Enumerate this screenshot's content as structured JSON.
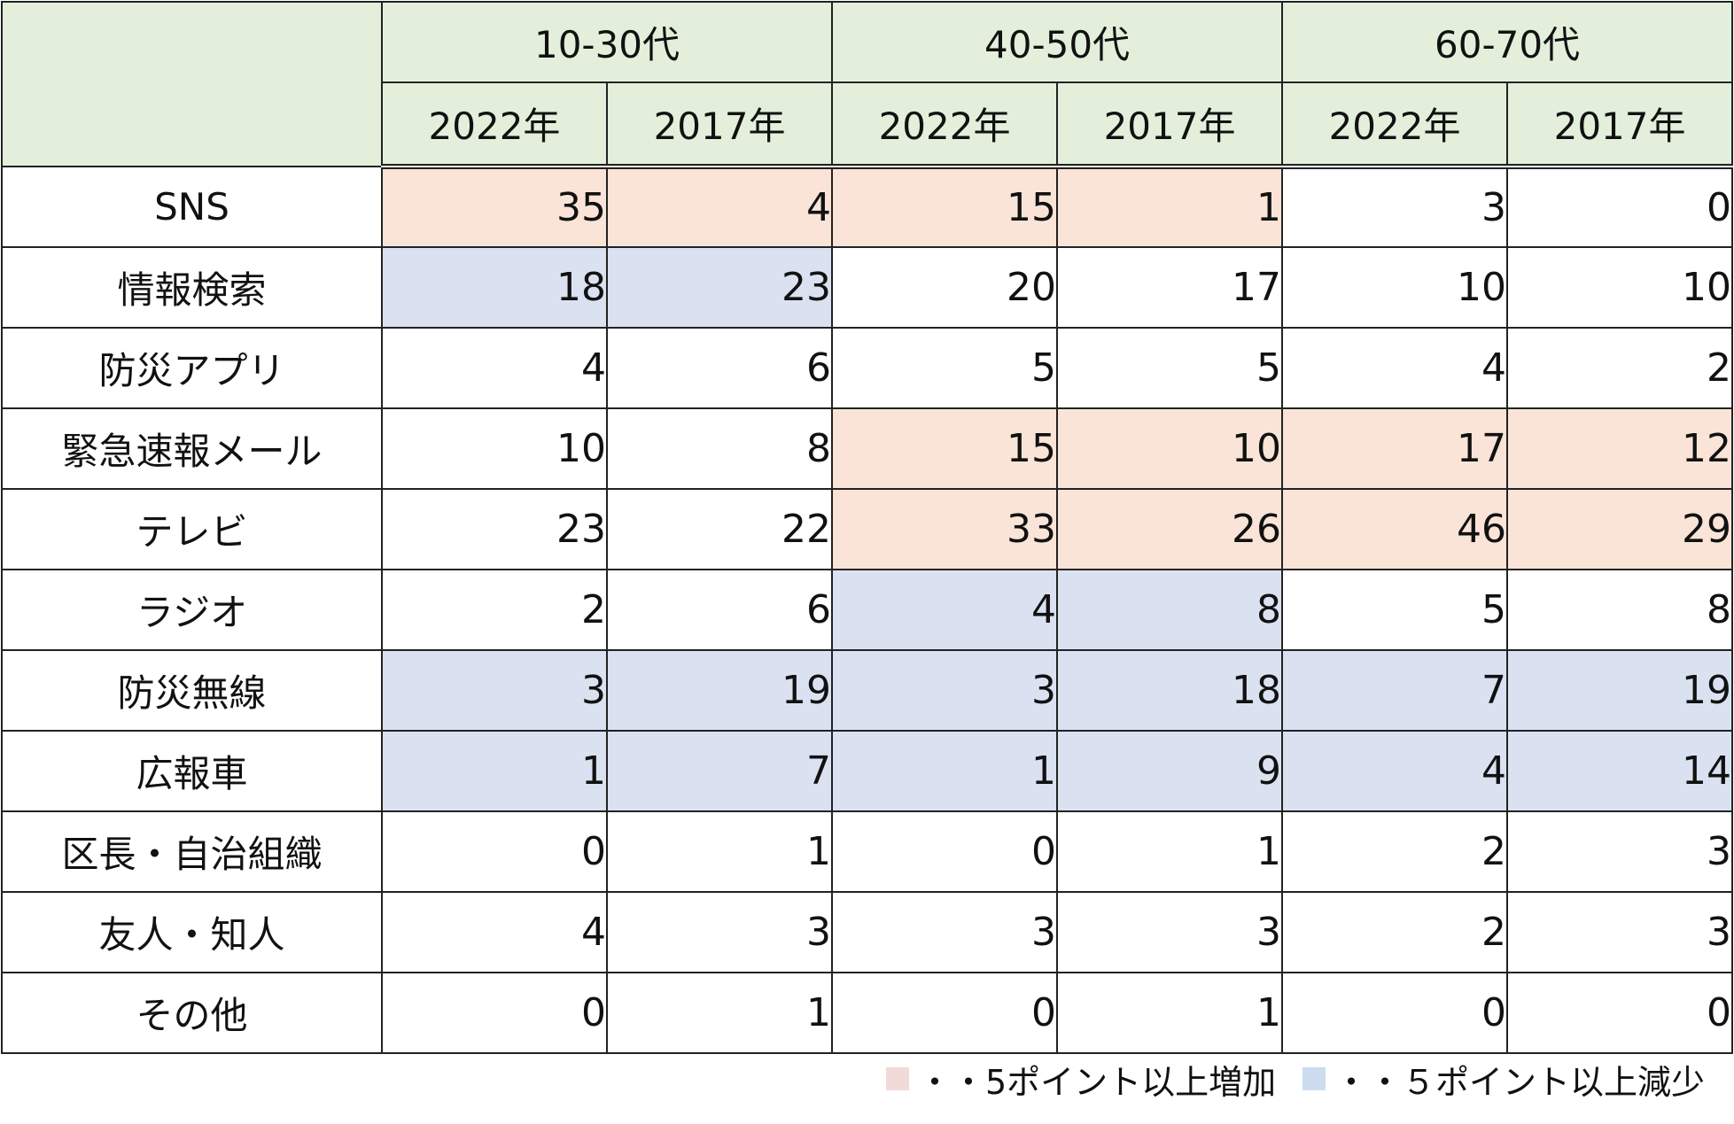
{
  "table": {
    "groups": [
      "10-30代",
      "40-50代",
      "60-70代"
    ],
    "years": [
      "2022年",
      "2017年",
      "2022年",
      "2017年",
      "2022年",
      "2017年"
    ],
    "rows": [
      {
        "label": "SNS",
        "values": [
          35,
          4,
          15,
          1,
          3,
          0
        ],
        "shade": [
          "up",
          "up",
          "up",
          "up",
          "",
          ""
        ]
      },
      {
        "label": "情報検索",
        "values": [
          18,
          23,
          20,
          17,
          10,
          10
        ],
        "shade": [
          "down",
          "down",
          "",
          "",
          "",
          ""
        ]
      },
      {
        "label": "防災アプリ",
        "values": [
          4,
          6,
          5,
          5,
          4,
          2
        ],
        "shade": [
          "",
          "",
          "",
          "",
          "",
          ""
        ]
      },
      {
        "label": "緊急速報メール",
        "values": [
          10,
          8,
          15,
          10,
          17,
          12
        ],
        "shade": [
          "",
          "",
          "up",
          "up",
          "up",
          "up"
        ]
      },
      {
        "label": "テレビ",
        "values": [
          23,
          22,
          33,
          26,
          46,
          29
        ],
        "shade": [
          "",
          "",
          "up",
          "up",
          "up",
          "up"
        ]
      },
      {
        "label": "ラジオ",
        "values": [
          2,
          6,
          4,
          8,
          5,
          8
        ],
        "shade": [
          "",
          "",
          "down",
          "down",
          "",
          ""
        ]
      },
      {
        "label": "防災無線",
        "values": [
          3,
          19,
          3,
          18,
          7,
          19
        ],
        "shade": [
          "down",
          "down",
          "down",
          "down",
          "down",
          "down"
        ]
      },
      {
        "label": "広報車",
        "values": [
          1,
          7,
          1,
          9,
          4,
          14
        ],
        "shade": [
          "down",
          "down",
          "down",
          "down",
          "down",
          "down"
        ]
      },
      {
        "label": "区長・自治組織",
        "values": [
          0,
          1,
          0,
          1,
          2,
          3
        ],
        "shade": [
          "",
          "",
          "",
          "",
          "",
          ""
        ]
      },
      {
        "label": "友人・知人",
        "values": [
          4,
          3,
          3,
          3,
          2,
          3
        ],
        "shade": [
          "",
          "",
          "",
          "",
          "",
          ""
        ]
      },
      {
        "label": "その他",
        "values": [
          0,
          1,
          0,
          1,
          0,
          0
        ],
        "shade": [
          "",
          "",
          "",
          "",
          "",
          ""
        ]
      }
    ]
  },
  "legend": {
    "increase": "・・5ポイント以上増加",
    "decrease": "・・５ポイント以上減少",
    "increase_color": "#f1dbd8",
    "decrease_color": "#cddcf0"
  },
  "colors": {
    "header_bg": "#e3efdb",
    "up_bg": "#f9e4d7",
    "down_bg": "#dae2f1"
  },
  "chart_data": {
    "type": "table",
    "columns": [
      "10-30代 2022年",
      "10-30代 2017年",
      "40-50代 2022年",
      "40-50代 2017年",
      "60-70代 2022年",
      "60-70代 2017年"
    ],
    "categories": [
      "SNS",
      "情報検索",
      "防災アプリ",
      "緊急速報メール",
      "テレビ",
      "ラジオ",
      "防災無線",
      "広報車",
      "区長・自治組織",
      "友人・知人",
      "その他"
    ],
    "series": [
      {
        "name": "10-30代 2022年",
        "values": [
          35,
          18,
          4,
          10,
          23,
          2,
          3,
          1,
          0,
          4,
          0
        ]
      },
      {
        "name": "10-30代 2017年",
        "values": [
          4,
          23,
          6,
          8,
          22,
          6,
          19,
          7,
          1,
          3,
          1
        ]
      },
      {
        "name": "40-50代 2022年",
        "values": [
          15,
          20,
          5,
          15,
          33,
          4,
          3,
          1,
          0,
          3,
          0
        ]
      },
      {
        "name": "40-50代 2017年",
        "values": [
          1,
          17,
          5,
          10,
          26,
          8,
          18,
          9,
          1,
          3,
          1
        ]
      },
      {
        "name": "60-70代 2022年",
        "values": [
          3,
          10,
          4,
          17,
          46,
          5,
          7,
          4,
          2,
          2,
          0
        ]
      },
      {
        "name": "60-70代 2017年",
        "values": [
          0,
          10,
          2,
          12,
          29,
          8,
          19,
          14,
          3,
          3,
          0
        ]
      }
    ]
  }
}
